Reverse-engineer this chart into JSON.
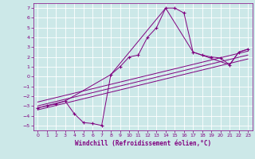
{
  "xlabel": "Windchill (Refroidissement éolien,°C)",
  "bg_color": "#cce8e8",
  "line_color": "#800080",
  "grid_color": "#ffffff",
  "xlim": [
    -0.5,
    23.5
  ],
  "ylim": [
    -5.5,
    7.5
  ],
  "xticks": [
    0,
    1,
    2,
    3,
    4,
    5,
    6,
    7,
    8,
    9,
    10,
    11,
    12,
    13,
    14,
    15,
    16,
    17,
    18,
    19,
    20,
    21,
    22,
    23
  ],
  "yticks": [
    -5,
    -4,
    -3,
    -2,
    -1,
    0,
    1,
    2,
    3,
    4,
    5,
    6,
    7
  ],
  "main_line_x": [
    0,
    1,
    2,
    3,
    4,
    5,
    6,
    7,
    8,
    9,
    10,
    11,
    12,
    13,
    14,
    15,
    16,
    17,
    18,
    19,
    20,
    21,
    22,
    23
  ],
  "main_line_y": [
    -3.2,
    -3.0,
    -2.8,
    -2.5,
    -3.8,
    -4.7,
    -4.8,
    -5.0,
    0.2,
    1.0,
    2.0,
    2.2,
    4.0,
    5.0,
    7.0,
    7.0,
    6.5,
    2.5,
    2.2,
    2.0,
    1.9,
    1.2,
    2.5,
    2.8
  ],
  "envelope_x": [
    0,
    3,
    8,
    14,
    17,
    21,
    22,
    23
  ],
  "envelope_y": [
    -3.2,
    -2.5,
    0.2,
    7.0,
    2.5,
    1.2,
    2.5,
    2.8
  ],
  "reg_lines": [
    {
      "x": [
        0,
        23
      ],
      "y": [
        -3.4,
        1.8
      ]
    },
    {
      "x": [
        0,
        23
      ],
      "y": [
        -3.0,
        2.2
      ]
    },
    {
      "x": [
        0,
        23
      ],
      "y": [
        -2.6,
        2.6
      ]
    }
  ]
}
